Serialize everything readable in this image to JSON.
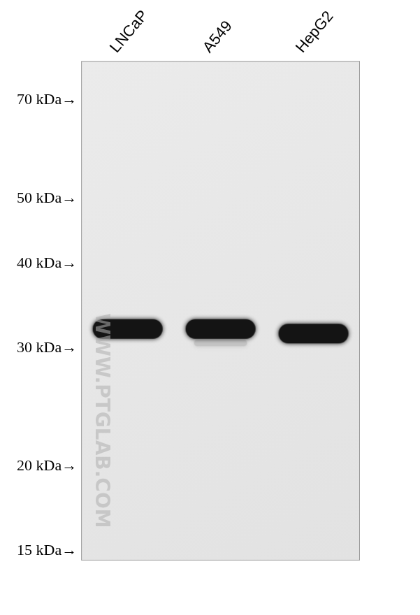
{
  "chart_data": {
    "type": "blot",
    "categories": [
      "LNCaP",
      "A549",
      "HepG2"
    ],
    "series": [
      {
        "color": "#141414",
        "values": [
          32,
          32,
          31.5
        ]
      },
      {
        "color": "#c4c4c4",
        "values": [
          null,
          30.5,
          null
        ]
      }
    ],
    "log": "y",
    "ylim": [
      14.5,
      80
    ],
    "yticks": [
      {
        "value": 15,
        "label": "15 kDa→"
      },
      {
        "value": 20,
        "label": "20 kDa→"
      },
      {
        "value": 30,
        "label": "30 kDa→"
      },
      {
        "value": 40,
        "label": "40 kDa→"
      },
      {
        "value": 50,
        "label": "50 kDa→"
      },
      {
        "value": 70,
        "label": "70 kDa→"
      }
    ],
    "grid": false,
    "annotations": [
      {
        "text": "WWW.PTGLAB.COM"
      }
    ]
  }
}
